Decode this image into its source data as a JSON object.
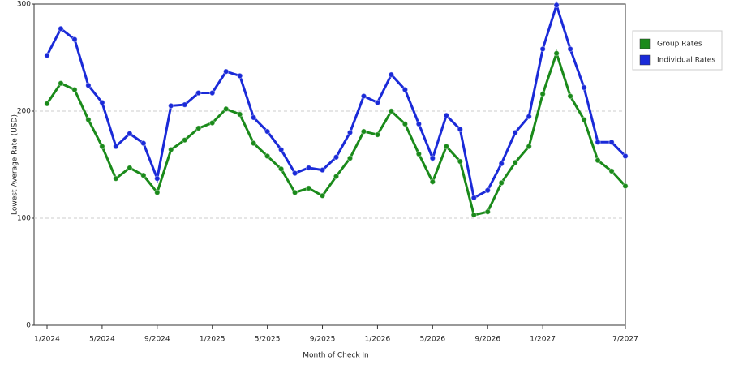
{
  "chart_data": {
    "type": "line",
    "x_label": "Month of Check In",
    "y_label": "Lowest Average Rate (USD)",
    "categories": [
      "1/2024",
      null,
      null,
      null,
      "5/2024",
      null,
      null,
      null,
      "9/2024",
      null,
      null,
      null,
      "1/2025",
      null,
      null,
      null,
      "5/2025",
      null,
      null,
      null,
      "9/2025",
      null,
      null,
      null,
      "1/2026",
      null,
      null,
      null,
      "5/2026",
      null,
      null,
      null,
      "9/2026",
      null,
      null,
      null,
      "1/2027",
      null,
      null,
      null,
      null,
      null,
      "7/2027"
    ],
    "series": [
      {
        "name": "Group Rates",
        "color": "#1a8a1a",
        "values": [
          207,
          226,
          220,
          192,
          167,
          137,
          147,
          140,
          124,
          164,
          173,
          184,
          189,
          202,
          197,
          170,
          158,
          146,
          124,
          128,
          121,
          139,
          156,
          181,
          178,
          200,
          188,
          160,
          134,
          167,
          153,
          103,
          106,
          133,
          152,
          167,
          216,
          254,
          214,
          192,
          154,
          144,
          130
        ]
      },
      {
        "name": "Individual Rates",
        "color": "#1a2ad8",
        "values": [
          252,
          277,
          267,
          224,
          208,
          167,
          179,
          170,
          137,
          205,
          206,
          217,
          217,
          237,
          233,
          194,
          181,
          164,
          142,
          147,
          145,
          157,
          180,
          214,
          208,
          234,
          220,
          188,
          156,
          196,
          183,
          119,
          126,
          151,
          180,
          195,
          258,
          299,
          258,
          222,
          171,
          171,
          158
        ]
      }
    ],
    "ylim": [
      0,
      300
    ],
    "yticks": [
      0,
      100,
      200,
      300
    ],
    "grid": true
  }
}
